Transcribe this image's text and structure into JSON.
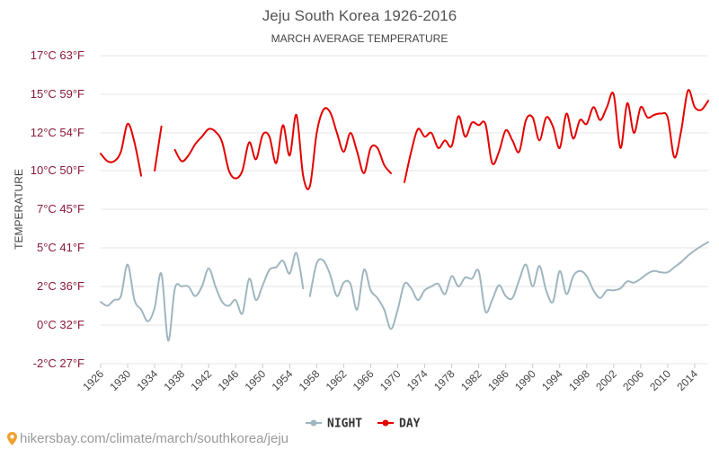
{
  "source": {
    "link_text": "hikersbay.com/climate/march/southkorea/jeju",
    "pin_icon": "map-pin-icon"
  },
  "chart_data": {
    "type": "line",
    "title": "Jeju South Korea 1926-2016",
    "subtitle": "MARCH AVERAGE TEMPERATURE",
    "xlabel": "",
    "ylabel": "TEMPERATURE",
    "xlim": [
      1926,
      2016
    ],
    "ylim": [
      -2,
      17
    ],
    "y_ticks": [
      {
        "value": -2,
        "label": "-2°C 27°F"
      },
      {
        "value": 0,
        "label": "0°C 32°F"
      },
      {
        "value": 2,
        "label": "2°C 36°F"
      },
      {
        "value": 5,
        "label": "5°C 41°F"
      },
      {
        "value": 7,
        "label": "7°C 45°F"
      },
      {
        "value": 10,
        "label": "10°C 50°F"
      },
      {
        "value": 12,
        "label": "12°C 54°F"
      },
      {
        "value": 15,
        "label": "15°C 59°F"
      },
      {
        "value": 17,
        "label": "17°C 63°F"
      }
    ],
    "x_ticks": [
      1926,
      1930,
      1934,
      1938,
      1942,
      1946,
      1950,
      1954,
      1958,
      1962,
      1966,
      1970,
      1974,
      1978,
      1982,
      1986,
      1990,
      1994,
      1998,
      2002,
      2006,
      2010,
      2014
    ],
    "grid": true,
    "legend_position": "bottom",
    "series": [
      {
        "name": "NIGHT",
        "color": "#9fb6bf",
        "segments": [
          [
            [
              1926,
              1.2
            ],
            [
              1927,
              1.0
            ],
            [
              1928,
              1.3
            ],
            [
              1929,
              1.5
            ],
            [
              1930,
              3.7
            ],
            [
              1931,
              1.3
            ],
            [
              1932,
              0.8
            ],
            [
              1933,
              0.2
            ],
            [
              1934,
              0.9
            ],
            [
              1935,
              3.0
            ],
            [
              1936,
              -0.8
            ],
            [
              1937,
              1.9
            ],
            [
              1938,
              2.0
            ],
            [
              1939,
              2.0
            ],
            [
              1940,
              1.5
            ],
            [
              1941,
              2.0
            ],
            [
              1942,
              3.4
            ],
            [
              1943,
              2.0
            ],
            [
              1944,
              1.2
            ],
            [
              1945,
              1.0
            ],
            [
              1946,
              1.3
            ],
            [
              1947,
              0.6
            ],
            [
              1948,
              2.6
            ],
            [
              1949,
              1.3
            ],
            [
              1950,
              2.1
            ],
            [
              1951,
              3.3
            ],
            [
              1952,
              3.5
            ],
            [
              1953,
              4.0
            ],
            [
              1954,
              3.0
            ],
            [
              1955,
              4.6
            ],
            [
              1956,
              1.9
            ]
          ],
          [
            [
              1957,
              1.5
            ],
            [
              1958,
              3.8
            ],
            [
              1959,
              4.0
            ],
            [
              1960,
              2.9
            ],
            [
              1961,
              1.5
            ],
            [
              1962,
              2.3
            ],
            [
              1963,
              2.2
            ],
            [
              1964,
              0.8
            ],
            [
              1965,
              3.3
            ],
            [
              1966,
              1.8
            ],
            [
              1967,
              1.4
            ],
            [
              1968,
              0.8
            ],
            [
              1969,
              -0.2
            ],
            [
              1970,
              0.8
            ],
            [
              1971,
              2.2
            ],
            [
              1972,
              1.9
            ],
            [
              1973,
              1.3
            ],
            [
              1974,
              1.8
            ],
            [
              1975,
              2.0
            ],
            [
              1976,
              2.2
            ],
            [
              1977,
              1.6
            ],
            [
              1978,
              2.8
            ],
            [
              1979,
              2.0
            ],
            [
              1980,
              2.7
            ],
            [
              1981,
              2.6
            ],
            [
              1982,
              3.2
            ],
            [
              1983,
              0.7
            ],
            [
              1984,
              1.3
            ],
            [
              1985,
              2.1
            ],
            [
              1986,
              1.5
            ],
            [
              1987,
              1.4
            ],
            [
              1988,
              2.5
            ],
            [
              1989,
              3.7
            ],
            [
              1990,
              2.0
            ],
            [
              1991,
              3.6
            ],
            [
              1992,
              1.8
            ],
            [
              1993,
              1.2
            ],
            [
              1994,
              3.2
            ],
            [
              1995,
              1.6
            ],
            [
              1996,
              2.8
            ],
            [
              1997,
              3.2
            ],
            [
              1998,
              2.8
            ],
            [
              1999,
              1.8
            ],
            [
              2000,
              1.4
            ],
            [
              2001,
              1.8
            ],
            [
              2002,
              1.8
            ],
            [
              2003,
              1.9
            ],
            [
              2004,
              2.4
            ],
            [
              2005,
              2.3
            ],
            [
              2006,
              2.6
            ],
            [
              2007,
              3.0
            ],
            [
              2008,
              3.2
            ],
            [
              2009,
              3.1
            ],
            [
              2010,
              3.1
            ],
            [
              2011,
              3.5
            ],
            [
              2012,
              3.9
            ],
            [
              2013,
              4.4
            ],
            [
              2014,
              4.8
            ],
            [
              2015,
              5.1
            ],
            [
              2016,
              5.3
            ]
          ]
        ]
      },
      {
        "name": "DAY",
        "color": "#e40000",
        "segments": [
          [
            [
              1926,
              10.9
            ],
            [
              1927,
              10.5
            ],
            [
              1928,
              10.5
            ],
            [
              1929,
              11.0
            ],
            [
              1930,
              12.7
            ],
            [
              1931,
              11.5
            ],
            [
              1932,
              9.6
            ]
          ],
          [
            [
              1934,
              10.0
            ],
            [
              1935,
              12.5
            ]
          ],
          [
            [
              1937,
              11.1
            ],
            [
              1938,
              10.5
            ],
            [
              1939,
              10.8
            ],
            [
              1940,
              11.4
            ],
            [
              1941,
              11.8
            ],
            [
              1942,
              12.3
            ],
            [
              1943,
              12.1
            ],
            [
              1944,
              11.5
            ],
            [
              1945,
              10.0
            ],
            [
              1946,
              9.4
            ],
            [
              1947,
              10.0
            ],
            [
              1948,
              11.5
            ],
            [
              1949,
              10.6
            ],
            [
              1950,
              11.9
            ],
            [
              1951,
              11.8
            ],
            [
              1952,
              10.4
            ],
            [
              1953,
              12.6
            ],
            [
              1954,
              10.8
            ],
            [
              1955,
              13.4
            ],
            [
              1956,
              9.6
            ],
            [
              1957,
              8.8
            ],
            [
              1958,
              12.0
            ],
            [
              1959,
              13.8
            ],
            [
              1960,
              13.6
            ],
            [
              1961,
              12.0
            ],
            [
              1962,
              11.0
            ],
            [
              1963,
              12.0
            ],
            [
              1964,
              11.0
            ],
            [
              1965,
              9.8
            ],
            [
              1966,
              11.2
            ],
            [
              1967,
              11.2
            ],
            [
              1968,
              10.3
            ],
            [
              1969,
              9.8
            ]
          ],
          [
            [
              1971,
              9.1
            ],
            [
              1972,
              11.0
            ],
            [
              1973,
              12.3
            ],
            [
              1974,
              11.8
            ],
            [
              1975,
              12.0
            ],
            [
              1976,
              11.2
            ],
            [
              1977,
              11.6
            ],
            [
              1978,
              11.3
            ],
            [
              1979,
              13.3
            ],
            [
              1980,
              11.8
            ],
            [
              1981,
              12.8
            ],
            [
              1982,
              12.6
            ],
            [
              1983,
              12.7
            ],
            [
              1984,
              10.4
            ],
            [
              1985,
              11.0
            ],
            [
              1986,
              12.2
            ],
            [
              1987,
              11.6
            ],
            [
              1988,
              11.0
            ],
            [
              1989,
              13.0
            ],
            [
              1990,
              13.2
            ],
            [
              1991,
              11.6
            ],
            [
              1992,
              13.2
            ],
            [
              1993,
              12.5
            ],
            [
              1994,
              11.2
            ],
            [
              1995,
              13.5
            ],
            [
              1996,
              11.7
            ],
            [
              1997,
              13.0
            ],
            [
              1998,
              12.7
            ],
            [
              1999,
              14.0
            ],
            [
              2000,
              13.0
            ],
            [
              2001,
              14.0
            ],
            [
              2002,
              15.0
            ],
            [
              2003,
              11.2
            ],
            [
              2004,
              14.3
            ],
            [
              2005,
              12.0
            ],
            [
              2006,
              14.0
            ],
            [
              2007,
              13.2
            ],
            [
              2008,
              13.4
            ],
            [
              2009,
              13.5
            ],
            [
              2010,
              13.2
            ],
            [
              2011,
              10.7
            ],
            [
              2012,
              12.2
            ],
            [
              2013,
              15.2
            ],
            [
              2014,
              14.0
            ],
            [
              2015,
              13.8
            ],
            [
              2016,
              14.5
            ]
          ]
        ]
      }
    ]
  }
}
